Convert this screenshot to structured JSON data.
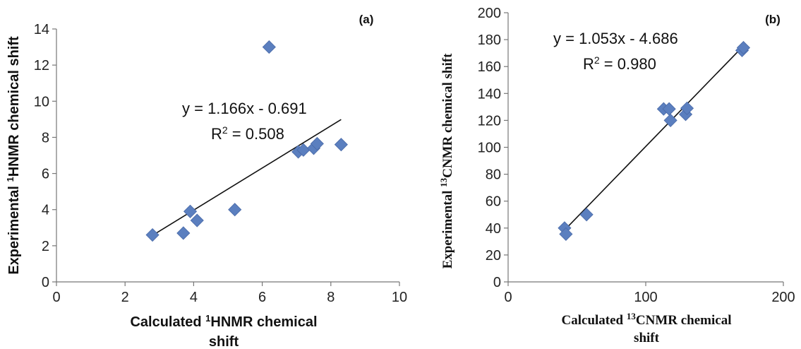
{
  "chart_data": [
    {
      "type": "scatter",
      "panel_label": "(a)",
      "xlabel_lines": [
        {
          "pre": "Calculated ",
          "sup": "1",
          "post": "HNMR chemical"
        },
        {
          "pre": "shift",
          "sup": "",
          "post": ""
        }
      ],
      "ylabel": {
        "pre": "Experimental ",
        "sup": "1",
        "post": "HNMR chemical shift"
      },
      "xlim": [
        0,
        10
      ],
      "ylim": [
        0,
        14
      ],
      "xticks": [
        "0",
        "2",
        "4",
        "6",
        "8",
        "10"
      ],
      "yticks": [
        "0",
        "2",
        "4",
        "6",
        "8",
        "10",
        "12",
        "14"
      ],
      "points": [
        {
          "x": 2.8,
          "y": 2.6
        },
        {
          "x": 3.7,
          "y": 2.7
        },
        {
          "x": 3.9,
          "y": 3.9
        },
        {
          "x": 4.1,
          "y": 3.4
        },
        {
          "x": 5.2,
          "y": 4.0
        },
        {
          "x": 6.2,
          "y": 13.0
        },
        {
          "x": 7.05,
          "y": 7.2
        },
        {
          "x": 7.2,
          "y": 7.3
        },
        {
          "x": 7.5,
          "y": 7.4
        },
        {
          "x": 7.6,
          "y": 7.65
        },
        {
          "x": 8.3,
          "y": 7.6
        }
      ],
      "trendline": {
        "slope": 1.166,
        "intercept": -0.691,
        "x_range": [
          2.8,
          8.3
        ]
      },
      "equation": "y = 1.166x - 0.691",
      "r2": {
        "pre": "R",
        "sup": "2",
        "post": " = 0.508"
      },
      "marker_color": "#5b7fbf",
      "grid": false
    },
    {
      "type": "scatter",
      "panel_label": "(b)",
      "xlabel_lines": [
        {
          "pre": "Calculated ",
          "sup": "13",
          "post": "CNMR chemical"
        },
        {
          "pre": "shift",
          "sup": "",
          "post": ""
        }
      ],
      "ylabel": {
        "pre": "Experimental ",
        "sup": "13",
        "post": "CNMR chemical shift"
      },
      "xlim": [
        0,
        200
      ],
      "ylim": [
        0,
        200
      ],
      "xticks": [
        "0",
        "100",
        "200"
      ],
      "yticks": [
        "0",
        "20",
        "40",
        "60",
        "80",
        "100",
        "120",
        "140",
        "160",
        "180",
        "200"
      ],
      "points": [
        {
          "x": 41,
          "y": 40
        },
        {
          "x": 42,
          "y": 35.5
        },
        {
          "x": 57,
          "y": 50
        },
        {
          "x": 113,
          "y": 128.5
        },
        {
          "x": 117,
          "y": 128.5
        },
        {
          "x": 118,
          "y": 120
        },
        {
          "x": 129,
          "y": 124.5
        },
        {
          "x": 130,
          "y": 129
        },
        {
          "x": 170,
          "y": 172
        },
        {
          "x": 171,
          "y": 174
        }
      ],
      "trendline": {
        "slope": 1.053,
        "intercept": -4.686,
        "x_range": [
          41,
          171
        ]
      },
      "equation": "y = 1.053x - 4.686",
      "r2": {
        "pre": "R",
        "sup": "2",
        "post": " = 0.980"
      },
      "marker_color": "#5b7fbf",
      "grid": false
    }
  ]
}
